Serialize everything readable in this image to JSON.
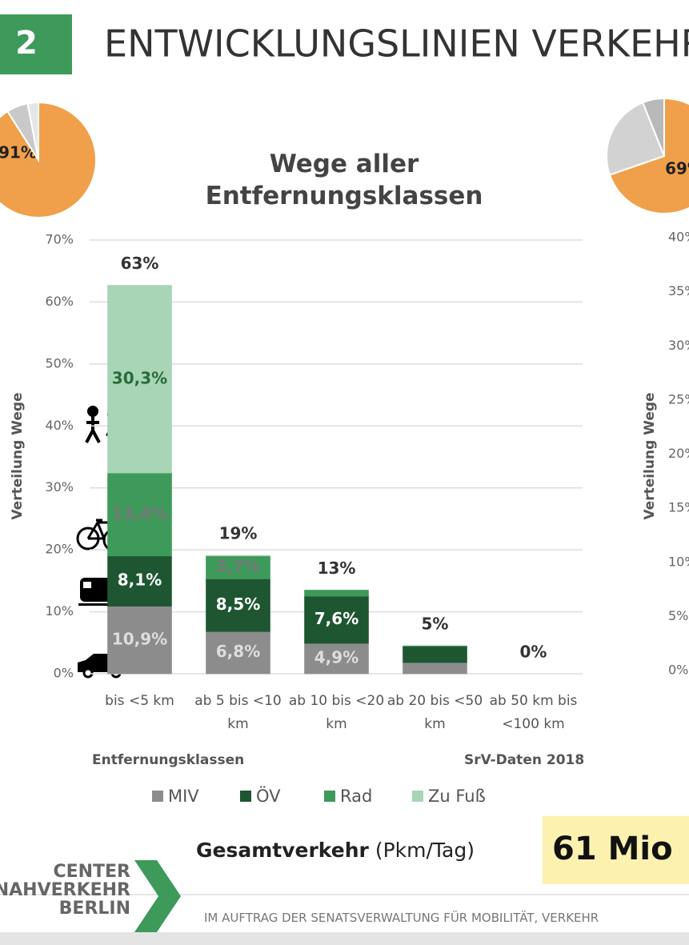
{
  "header": {
    "number": "2",
    "title": "ENTWICKLUNGSLINIEN VERKEHR"
  },
  "chart_data": [
    {
      "type": "stacked-bar",
      "title": "Wege aller Entfernungsklassen",
      "y_label": "Verteilung Wege",
      "x_label": "Entfernungsklassen",
      "source": "SrV-Daten 2018",
      "categories": [
        "bis <5 km",
        "ab 5 bis <10 km",
        "ab 10 bis <20 km",
        "ab 20 bis <50 km",
        "ab 50 km bis <100 km"
      ],
      "series": [
        {
          "name": "MIV",
          "color": "#8c8c8c",
          "values": [
            10.9,
            6.8,
            4.9,
            1.8,
            0
          ],
          "value_labels": [
            "10,9%",
            "6,8%",
            "4,9%",
            null,
            null
          ]
        },
        {
          "name": "ÖV",
          "color": "#1e5631",
          "values": [
            8.1,
            8.5,
            7.6,
            2.6,
            0
          ],
          "value_labels": [
            "8,1%",
            "8,5%",
            "7,6%",
            null,
            null
          ]
        },
        {
          "name": "Rad",
          "color": "#3d9a5a",
          "values": [
            13.4,
            3.7,
            1.0,
            0.1,
            0
          ],
          "value_labels": [
            "13,4%",
            "3,7%",
            null,
            null,
            null
          ]
        },
        {
          "name": "Zu Fuß",
          "color": "#a8d5b5",
          "values": [
            30.3,
            0.1,
            0,
            0,
            0
          ],
          "value_labels": [
            "30,3%",
            null,
            null,
            null,
            null
          ]
        }
      ],
      "totals": [
        63,
        19,
        13,
        5,
        0
      ],
      "total_labels": [
        "63%",
        "19%",
        "13%",
        "5%",
        "0%"
      ],
      "ylim": [
        0,
        70
      ],
      "yticks": [
        {
          "value": 0,
          "label": "0%"
        },
        {
          "value": 10,
          "label": "10%"
        },
        {
          "value": 20,
          "label": "20%"
        },
        {
          "value": 30,
          "label": "30%"
        },
        {
          "value": 40,
          "label": "40%"
        },
        {
          "value": 50,
          "label": "50%"
        },
        {
          "value": 60,
          "label": "60%"
        },
        {
          "value": 70,
          "label": "70%"
        }
      ],
      "grid": true,
      "legend": "bottom"
    },
    {
      "type": "pie",
      "values": [
        91,
        6,
        3
      ],
      "colors": [
        "#f0a04b",
        "#c9c9c9",
        "#e6e6e6"
      ],
      "value_labels": [
        "91%",
        null,
        null
      ]
    },
    {
      "type": "pie",
      "values": [
        69,
        24,
        6
      ],
      "colors": [
        "#f0a04b",
        "#d2d2d2",
        "#b9b9b9"
      ],
      "value_labels": [
        "69%",
        null,
        null
      ]
    },
    {
      "type": "axis",
      "y_label": "Verteilung Wege",
      "ylim": [
        0,
        40
      ],
      "yticks": [
        {
          "value": 0,
          "label": "0%"
        },
        {
          "value": 5,
          "label": "5%"
        },
        {
          "value": 10,
          "label": "10%"
        },
        {
          "value": 15,
          "label": "15%"
        },
        {
          "value": 20,
          "label": "20%"
        },
        {
          "value": 25,
          "label": "25%"
        },
        {
          "value": 30,
          "label": "30%"
        },
        {
          "value": 35,
          "label": "35%"
        },
        {
          "value": 40,
          "label": "40%"
        }
      ]
    }
  ],
  "summary": {
    "label": "Gesamtverkehr",
    "unit": "(Pkm/Tag)",
    "value": "61 Mio"
  },
  "footer": {
    "logo": [
      "CENTER",
      "NAHVERKEHR",
      "BERLIN"
    ],
    "text": "IM AUFTRAG DER SENATSVERWALTUNG FÜR MOBILITÄT, VERKEHR"
  }
}
